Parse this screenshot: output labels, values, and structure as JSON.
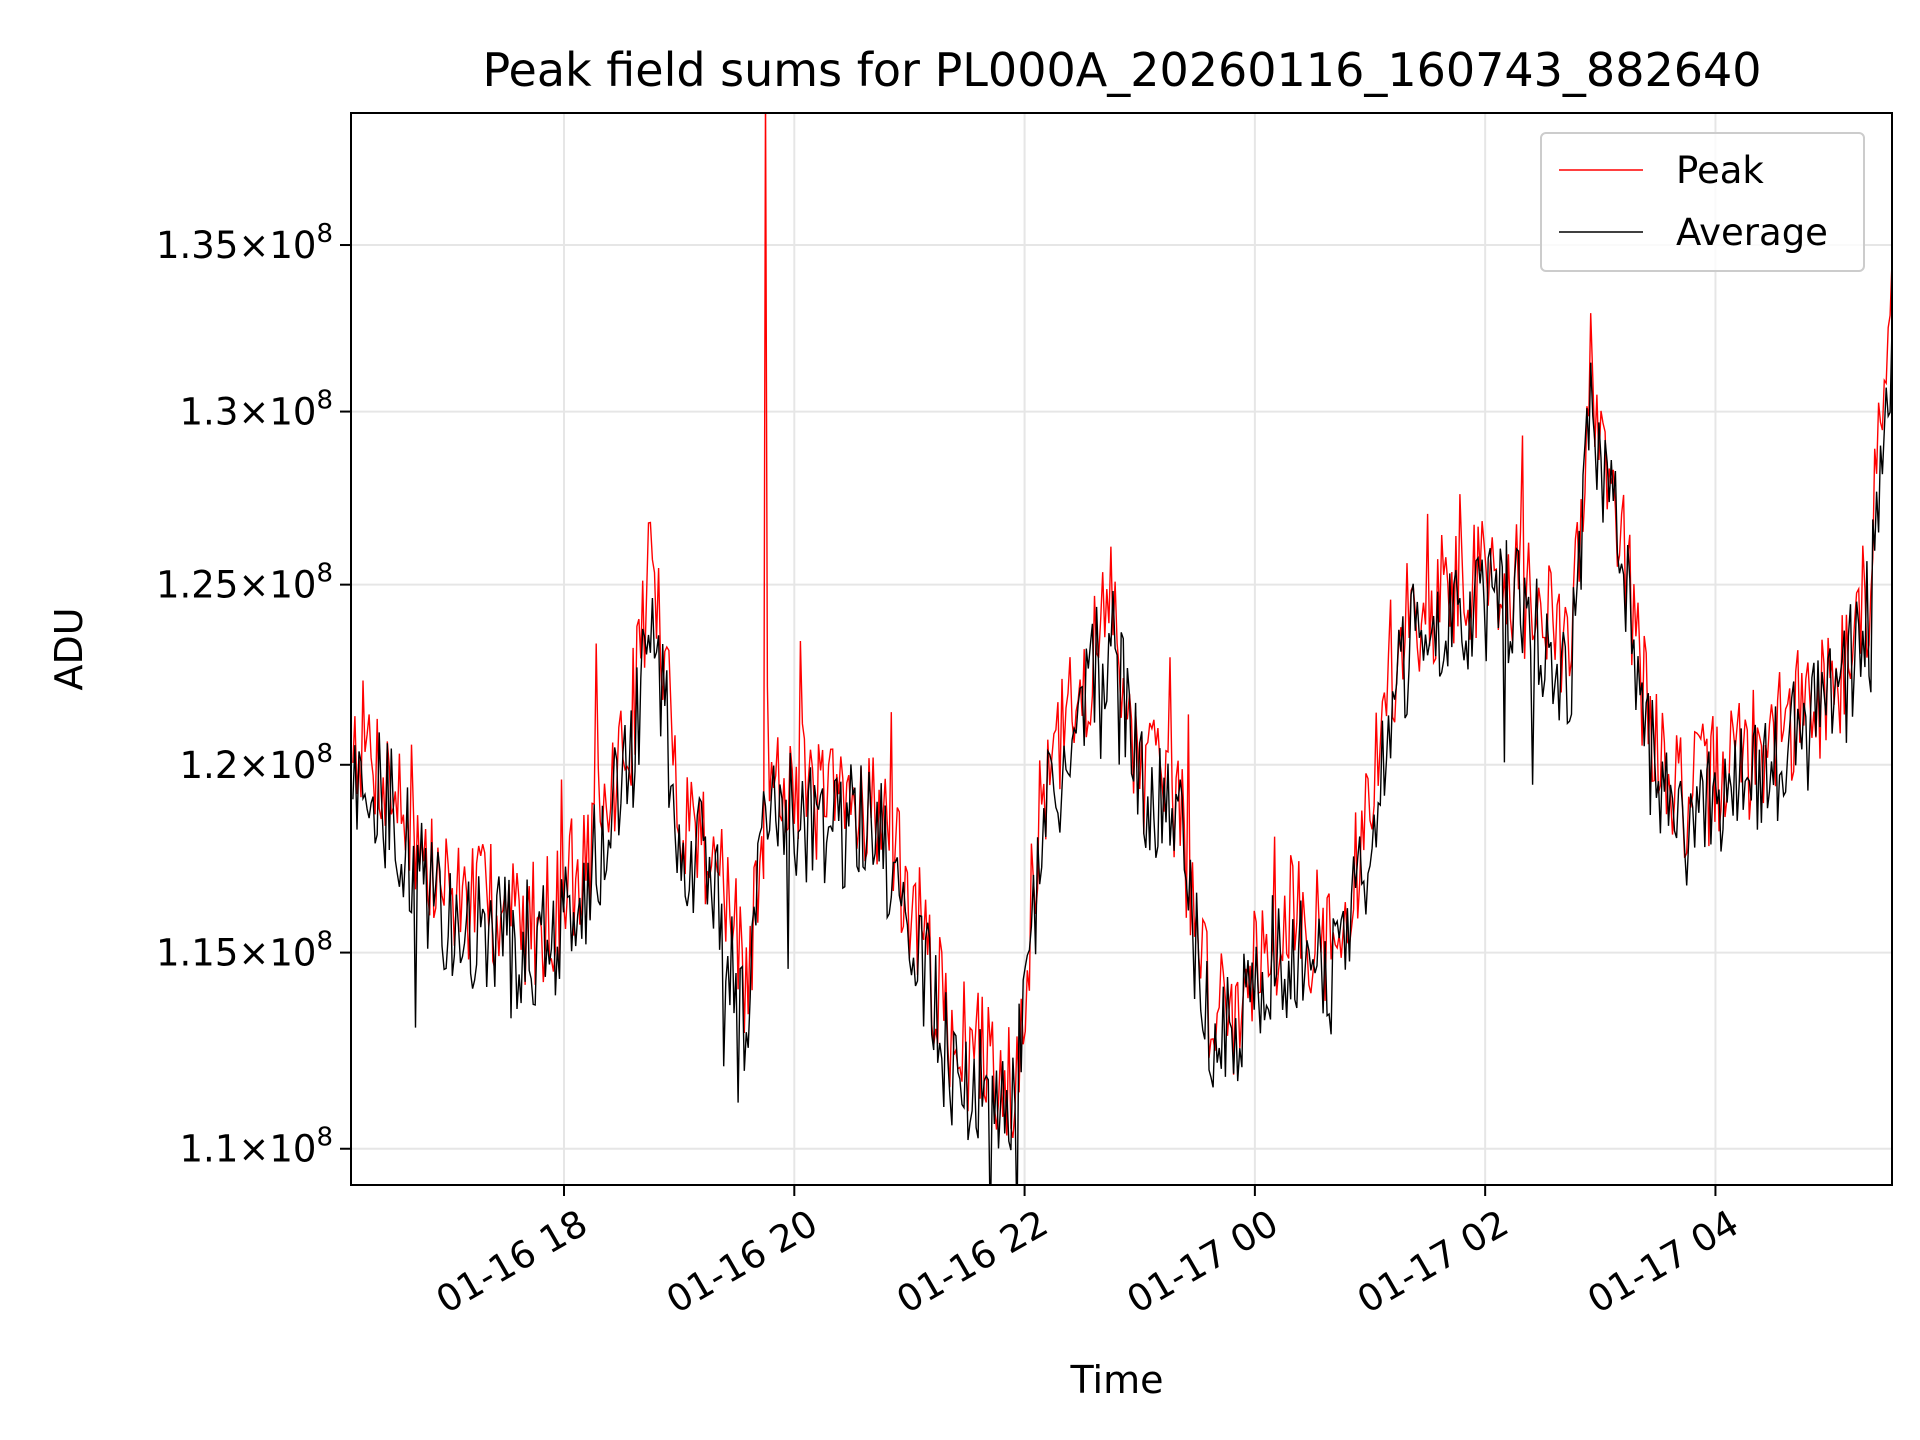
{
  "chart_data": {
    "type": "line",
    "title": "Peak field sums for PL000A_20260116_160743_882640",
    "xlabel": "Time",
    "ylabel": "ADU",
    "x_ticks": [
      "01-16 18",
      "01-16 20",
      "01-16 22",
      "01-17 00",
      "01-17 02",
      "01-17 04"
    ],
    "y_ticks": [
      {
        "value": 110000000,
        "mantissa": "1.1",
        "exp": "8"
      },
      {
        "value": 115000000,
        "mantissa": "1.15",
        "exp": "8"
      },
      {
        "value": 120000000,
        "mantissa": "1.2",
        "exp": "8"
      },
      {
        "value": 125000000,
        "mantissa": "1.25",
        "exp": "8"
      },
      {
        "value": 130000000,
        "mantissa": "1.3",
        "exp": "8"
      },
      {
        "value": 135000000,
        "mantissa": "1.35",
        "exp": "8"
      }
    ],
    "xlim": [
      "2026-01-16T16:09",
      "2026-01-17T05:32"
    ],
    "ylim": [
      109100000,
      139100000
    ],
    "y_scale": "log",
    "grid": true,
    "legend_position": "top-right",
    "series": [
      {
        "name": "Peak",
        "color": "#ff0000",
        "x": [
          "2026-01-16T16:10",
          "2026-01-16T16:30",
          "2026-01-16T16:50",
          "2026-01-16T17:05",
          "2026-01-16T17:25",
          "2026-01-16T17:45",
          "2026-01-16T18:05",
          "2026-01-16T18:20",
          "2026-01-16T18:35",
          "2026-01-16T18:45",
          "2026-01-16T19:00",
          "2026-01-16T19:20",
          "2026-01-16T19:35",
          "2026-01-16T19:44",
          "2026-01-16T19:45",
          "2026-01-16T19:46",
          "2026-01-16T20:00",
          "2026-01-16T20:20",
          "2026-01-16T20:40",
          "2026-01-16T21:00",
          "2026-01-16T21:20",
          "2026-01-16T21:40",
          "2026-01-16T21:55",
          "2026-01-16T22:10",
          "2026-01-16T22:30",
          "2026-01-16T22:45",
          "2026-01-16T23:00",
          "2026-01-16T23:20",
          "2026-01-16T23:35",
          "2026-01-16T23:50",
          "2026-01-17T00:05",
          "2026-01-17T00:25",
          "2026-01-17T00:45",
          "2026-01-17T01:00",
          "2026-01-17T01:15",
          "2026-01-17T01:30",
          "2026-01-17T01:50",
          "2026-01-17T02:10",
          "2026-01-17T02:30",
          "2026-01-17T02:45",
          "2026-01-17T02:55",
          "2026-01-17T03:10",
          "2026-01-17T03:25",
          "2026-01-17T03:45",
          "2026-01-17T04:05",
          "2026-01-17T04:25",
          "2026-01-17T04:45",
          "2026-01-17T05:05",
          "2026-01-17T05:20",
          "2026-01-17T05:32"
        ],
        "y": [
          121000000,
          119500000,
          117000000,
          116500000,
          116000000,
          115800000,
          116500000,
          118500000,
          121000000,
          126000000,
          119000000,
          117500000,
          114000000,
          118000000,
          139100000,
          120500000,
          119500000,
          118800000,
          119200000,
          116500000,
          113000000,
          112200000,
          111800000,
          119500000,
          122000000,
          124500000,
          120000000,
          119000000,
          114000000,
          113500000,
          115500000,
          115800000,
          115000000,
          119000000,
          123500000,
          124500000,
          125000000,
          125500000,
          124000000,
          123000000,
          131500000,
          127000000,
          121000000,
          119000000,
          120000000,
          120500000,
          121500000,
          122500000,
          125000000,
          134500000
        ]
      },
      {
        "name": "Average",
        "color": "#000000",
        "x": [
          "2026-01-16T16:10",
          "2026-01-16T16:30",
          "2026-01-16T16:50",
          "2026-01-16T17:05",
          "2026-01-16T17:25",
          "2026-01-16T17:45",
          "2026-01-16T18:05",
          "2026-01-16T18:20",
          "2026-01-16T18:35",
          "2026-01-16T18:45",
          "2026-01-16T19:00",
          "2026-01-16T19:20",
          "2026-01-16T19:35",
          "2026-01-16T19:45",
          "2026-01-16T20:00",
          "2026-01-16T20:20",
          "2026-01-16T20:40",
          "2026-01-16T21:00",
          "2026-01-16T21:20",
          "2026-01-16T21:40",
          "2026-01-16T21:55",
          "2026-01-16T22:10",
          "2026-01-16T22:30",
          "2026-01-16T22:45",
          "2026-01-16T23:00",
          "2026-01-16T23:20",
          "2026-01-16T23:35",
          "2026-01-16T23:50",
          "2026-01-17T00:05",
          "2026-01-17T00:25",
          "2026-01-17T00:45",
          "2026-01-17T01:00",
          "2026-01-17T01:15",
          "2026-01-17T01:30",
          "2026-01-17T01:50",
          "2026-01-17T02:10",
          "2026-01-17T02:30",
          "2026-01-17T02:45",
          "2026-01-17T02:55",
          "2026-01-17T03:10",
          "2026-01-17T03:25",
          "2026-01-17T03:45",
          "2026-01-17T04:05",
          "2026-01-17T04:25",
          "2026-01-17T04:45",
          "2026-01-17T05:05",
          "2026-01-17T05:20",
          "2026-01-17T05:32"
        ],
        "y": [
          120000000,
          118800000,
          116300000,
          115800000,
          115300000,
          115200000,
          115800000,
          117800000,
          120000000,
          124500000,
          118200000,
          116800000,
          113300000,
          119000000,
          118700000,
          118100000,
          118600000,
          115800000,
          112300000,
          111400000,
          111000000,
          118800000,
          121300000,
          123800000,
          119300000,
          118300000,
          113300000,
          112800000,
          114800000,
          115100000,
          114300000,
          118200000,
          122700000,
          123800000,
          124200000,
          124800000,
          123300000,
          122300000,
          130500000,
          126300000,
          120300000,
          118300000,
          119300000,
          119800000,
          120800000,
          121800000,
          124300000,
          132500000
        ]
      }
    ]
  }
}
